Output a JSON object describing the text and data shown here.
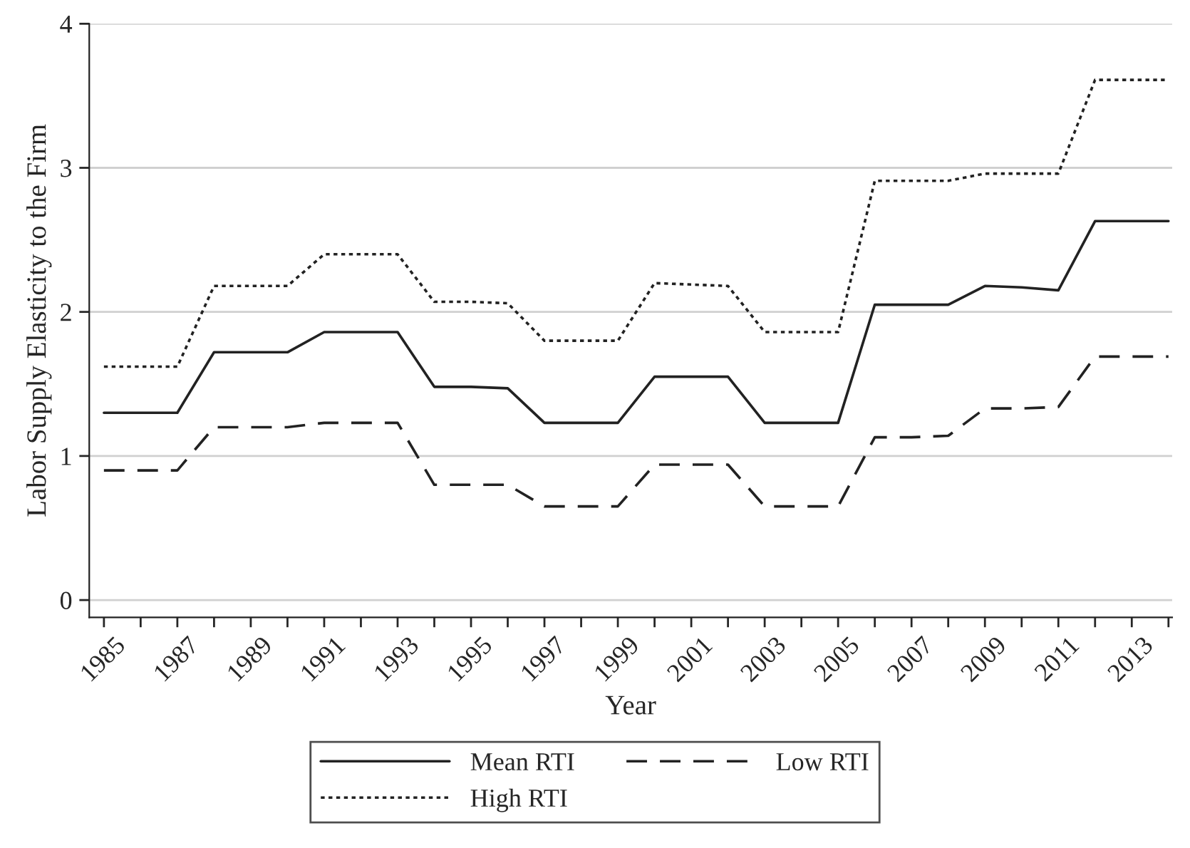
{
  "chart_data": {
    "type": "line",
    "xlabel": "Year",
    "ylabel": "Labor Supply Elasticity to the Firm",
    "x": [
      1985,
      1986,
      1987,
      1988,
      1989,
      1990,
      1991,
      1992,
      1993,
      1994,
      1995,
      1996,
      1997,
      1998,
      1999,
      2000,
      2001,
      2002,
      2003,
      2004,
      2005,
      2006,
      2007,
      2008,
      2009,
      2010,
      2011,
      2012,
      2013,
      2014
    ],
    "series": [
      {
        "name": "Mean RTI",
        "color": "#222222",
        "line_style": "solid",
        "values": [
          1.3,
          1.3,
          1.3,
          1.72,
          1.72,
          1.72,
          1.86,
          1.86,
          1.86,
          1.48,
          1.48,
          1.47,
          1.23,
          1.23,
          1.23,
          1.55,
          1.55,
          1.55,
          1.23,
          1.23,
          1.23,
          2.05,
          2.05,
          2.05,
          2.18,
          2.17,
          2.15,
          2.63,
          2.63,
          2.63
        ]
      },
      {
        "name": "High RTI",
        "color": "#222222",
        "line_style": "dotted",
        "values": [
          1.62,
          1.62,
          1.62,
          2.18,
          2.18,
          2.18,
          2.4,
          2.4,
          2.4,
          2.07,
          2.07,
          2.06,
          1.8,
          1.8,
          1.8,
          2.2,
          2.19,
          2.18,
          1.86,
          1.86,
          1.86,
          2.91,
          2.91,
          2.91,
          2.96,
          2.96,
          2.96,
          3.61,
          3.61,
          3.61
        ]
      },
      {
        "name": "Low RTI",
        "color": "#222222",
        "line_style": "dashed",
        "values": [
          0.9,
          0.9,
          0.9,
          1.2,
          1.2,
          1.2,
          1.23,
          1.23,
          1.23,
          0.8,
          0.8,
          0.8,
          0.65,
          0.65,
          0.65,
          0.94,
          0.94,
          0.94,
          0.65,
          0.65,
          0.65,
          1.13,
          1.13,
          1.14,
          1.33,
          1.33,
          1.34,
          1.69,
          1.69,
          1.69
        ]
      }
    ],
    "xlim": [
      1984.6,
      2014.1
    ],
    "ylim": [
      -0.12,
      4.0
    ],
    "xticks": [
      1985,
      {
        "value": 1986,
        "label": null
      },
      1987,
      {
        "value": 1988,
        "label": null
      },
      1989,
      {
        "value": 1990,
        "label": null
      },
      1991,
      {
        "value": 1992,
        "label": null
      },
      1993,
      {
        "value": 1994,
        "label": null
      },
      1995,
      {
        "value": 1996,
        "label": null
      },
      1997,
      {
        "value": 1998,
        "label": null
      },
      1999,
      {
        "value": 2000,
        "label": null
      },
      2001,
      {
        "value": 2002,
        "label": null
      },
      2003,
      {
        "value": 2004,
        "label": null
      },
      2005,
      {
        "value": 2006,
        "label": null
      },
      2007,
      {
        "value": 2008,
        "label": null
      },
      2009,
      {
        "value": 2010,
        "label": null
      },
      2011,
      {
        "value": 2012,
        "label": null
      },
      2013,
      {
        "value": 2014,
        "label": null
      }
    ],
    "yticks": [
      0,
      1,
      2,
      3,
      4
    ],
    "grid": "y",
    "legend": "bottom",
    "marker": "none"
  }
}
